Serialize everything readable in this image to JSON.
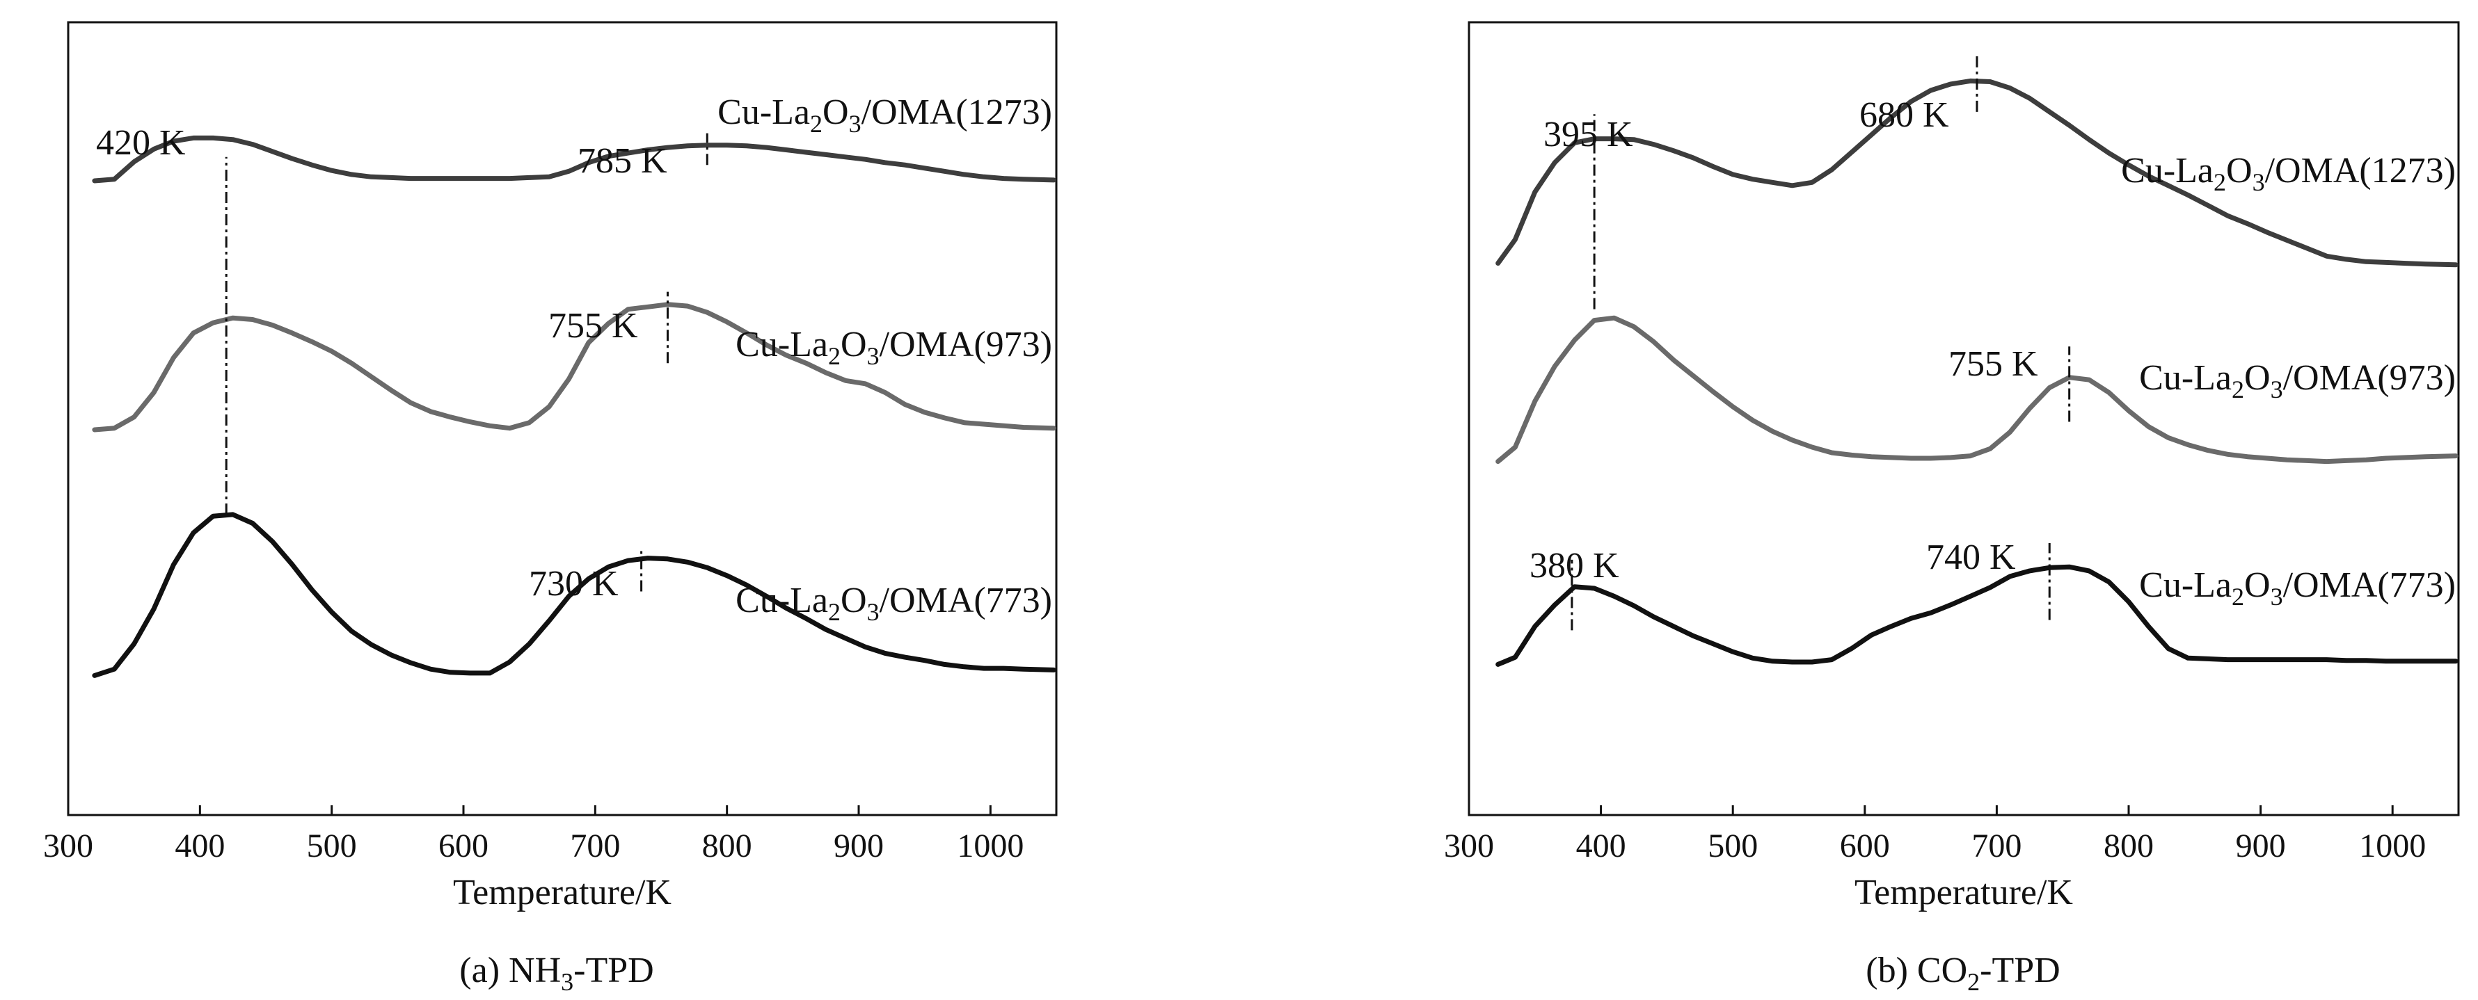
{
  "chart_data": [
    {
      "type": "line",
      "panel": "a",
      "title": "(a) NH3-TPD",
      "title_parts": {
        "prefix": "(a) NH",
        "sub": "3",
        "suffix": "-TPD"
      },
      "xlabel": "Temperature/K",
      "ylabel": "",
      "xlim": [
        300,
        1050
      ],
      "x_ticks": [
        300,
        400,
        500,
        600,
        700,
        800,
        900,
        1000
      ],
      "y_ticks": [],
      "ylim": [
        0,
        100
      ],
      "grid": false,
      "series": [
        {
          "name": "Cu-La2O3/OMA(1273)",
          "label_parts": [
            "Cu-La",
            "2",
            "O",
            "3",
            "/OMA(1273)"
          ],
          "color": "#3d3d3d",
          "x": [
            320,
            335,
            350,
            365,
            380,
            395,
            410,
            425,
            440,
            455,
            470,
            485,
            500,
            515,
            530,
            545,
            560,
            575,
            590,
            605,
            620,
            635,
            650,
            665,
            680,
            695,
            710,
            725,
            740,
            755,
            770,
            785,
            800,
            815,
            830,
            845,
            860,
            875,
            890,
            905,
            920,
            935,
            950,
            965,
            980,
            995,
            1010,
            1025,
            1048
          ],
          "y": [
            80.0,
            80.2,
            82.4,
            84.0,
            85.0,
            85.4,
            85.4,
            85.2,
            84.6,
            83.7,
            82.8,
            82.0,
            81.3,
            80.8,
            80.5,
            80.4,
            80.3,
            80.3,
            80.3,
            80.3,
            80.3,
            80.3,
            80.4,
            80.5,
            81.2,
            82.3,
            83.1,
            83.5,
            83.9,
            84.2,
            84.4,
            84.5,
            84.5,
            84.4,
            84.2,
            83.9,
            83.6,
            83.3,
            83.0,
            82.7,
            82.3,
            82.0,
            81.6,
            81.2,
            80.8,
            80.5,
            80.3,
            80.2,
            80.1
          ]
        },
        {
          "name": "Cu-La2O3/OMA(973)",
          "label_parts": [
            "Cu-La",
            "2",
            "O",
            "3",
            "/OMA(973)"
          ],
          "color": "#6a6a6a",
          "x": [
            320,
            335,
            350,
            365,
            380,
            395,
            410,
            425,
            440,
            455,
            470,
            485,
            500,
            515,
            530,
            545,
            560,
            575,
            590,
            605,
            620,
            635,
            650,
            665,
            680,
            695,
            710,
            725,
            740,
            755,
            770,
            785,
            800,
            815,
            830,
            845,
            860,
            875,
            890,
            905,
            920,
            935,
            950,
            965,
            980,
            995,
            1010,
            1025,
            1048
          ],
          "y": [
            48.6,
            48.8,
            50.2,
            53.3,
            57.7,
            60.8,
            62.1,
            62.7,
            62.5,
            61.8,
            60.8,
            59.7,
            58.5,
            57.0,
            55.3,
            53.6,
            52.0,
            50.9,
            50.2,
            49.6,
            49.1,
            48.8,
            49.5,
            51.5,
            55.0,
            59.6,
            62.0,
            63.8,
            64.1,
            64.4,
            64.2,
            63.4,
            62.2,
            60.8,
            59.3,
            58.0,
            57.0,
            55.8,
            54.8,
            54.4,
            53.3,
            51.8,
            50.8,
            50.1,
            49.5,
            49.3,
            49.1,
            48.9,
            48.8
          ]
        },
        {
          "name": "Cu-La2O3/OMA(773)",
          "label_parts": [
            "Cu-La",
            "2",
            "O",
            "3",
            "/OMA(773)"
          ],
          "color": "#111111",
          "x": [
            320,
            335,
            350,
            365,
            380,
            395,
            410,
            425,
            440,
            455,
            470,
            485,
            500,
            515,
            530,
            545,
            560,
            575,
            590,
            605,
            620,
            635,
            650,
            665,
            680,
            695,
            710,
            725,
            740,
            755,
            770,
            785,
            800,
            815,
            830,
            845,
            860,
            875,
            890,
            905,
            920,
            935,
            950,
            965,
            980,
            995,
            1010,
            1025,
            1048
          ],
          "y": [
            17.6,
            18.4,
            21.6,
            26.0,
            31.6,
            35.6,
            37.7,
            37.9,
            36.8,
            34.5,
            31.6,
            28.4,
            25.6,
            23.2,
            21.5,
            20.2,
            19.2,
            18.4,
            18.0,
            17.9,
            17.9,
            19.3,
            21.6,
            24.5,
            27.6,
            29.8,
            31.3,
            32.1,
            32.4,
            32.3,
            31.9,
            31.2,
            30.2,
            29.0,
            27.6,
            26.1,
            24.8,
            23.4,
            22.3,
            21.2,
            20.4,
            19.9,
            19.5,
            19.0,
            18.7,
            18.5,
            18.5,
            18.4,
            18.3
          ]
        }
      ],
      "peak_markers": [
        {
          "label": "420 K",
          "x": 420,
          "y_from": 37.9,
          "y_to": 83.0
        },
        {
          "label": "785 K",
          "x": 785,
          "y_from": 82.0,
          "y_to": 86.0
        },
        {
          "label": "755 K",
          "x": 755,
          "y_from": 57.0,
          "y_to": 66.0
        },
        {
          "label": "730 K",
          "x": 735,
          "y_from": 28.2,
          "y_to": 33.6
        }
      ]
    },
    {
      "type": "line",
      "panel": "b",
      "title": "(b) CO2-TPD",
      "title_parts": {
        "prefix": "(b) CO",
        "sub": "2",
        "suffix": "-TPD"
      },
      "xlabel": "Temperature/K",
      "ylabel": "",
      "xlim": [
        300,
        1050
      ],
      "x_ticks": [
        300,
        400,
        500,
        600,
        700,
        800,
        900,
        1000
      ],
      "y_ticks": [],
      "ylim": [
        0,
        100
      ],
      "grid": false,
      "series": [
        {
          "name": "Cu-La2O3/OMA(1273)",
          "label_parts": [
            "Cu-La",
            "2",
            "O",
            "3",
            "/OMA(1273)"
          ],
          "color": "#3d3d3d",
          "x": [
            322,
            335,
            350,
            365,
            380,
            395,
            410,
            425,
            440,
            455,
            470,
            485,
            500,
            515,
            530,
            545,
            560,
            575,
            590,
            605,
            620,
            635,
            650,
            665,
            680,
            695,
            710,
            725,
            740,
            755,
            770,
            785,
            800,
            815,
            830,
            845,
            860,
            875,
            890,
            905,
            920,
            935,
            950,
            965,
            980,
            995,
            1010,
            1025,
            1048
          ],
          "y": [
            69.6,
            72.6,
            78.6,
            82.3,
            84.8,
            85.3,
            85.3,
            85.2,
            84.6,
            83.8,
            82.9,
            81.8,
            80.8,
            80.2,
            79.8,
            79.4,
            79.8,
            81.4,
            83.6,
            85.8,
            88.0,
            90.0,
            91.4,
            92.2,
            92.6,
            92.5,
            91.7,
            90.4,
            88.7,
            87.0,
            85.2,
            83.5,
            82.0,
            80.6,
            79.4,
            78.2,
            76.9,
            75.6,
            74.6,
            73.5,
            72.5,
            71.5,
            70.5,
            70.1,
            69.8,
            69.7,
            69.6,
            69.5,
            69.4
          ]
        },
        {
          "name": "Cu-La2O3/OMA(973)",
          "label_parts": [
            "Cu-La",
            "2",
            "O",
            "3",
            "/OMA(973)"
          ],
          "color": "#6a6a6a",
          "x": [
            322,
            335,
            350,
            365,
            380,
            395,
            410,
            425,
            440,
            455,
            470,
            485,
            500,
            515,
            530,
            545,
            560,
            575,
            590,
            605,
            620,
            635,
            650,
            665,
            680,
            695,
            710,
            725,
            740,
            755,
            770,
            785,
            800,
            815,
            830,
            845,
            860,
            875,
            890,
            905,
            920,
            935,
            950,
            965,
            980,
            995,
            1010,
            1025,
            1048
          ],
          "y": [
            44.6,
            46.4,
            52.2,
            56.6,
            59.9,
            62.4,
            62.7,
            61.6,
            59.7,
            57.4,
            55.4,
            53.4,
            51.5,
            49.8,
            48.4,
            47.3,
            46.4,
            45.7,
            45.4,
            45.2,
            45.1,
            45.0,
            45.0,
            45.1,
            45.3,
            46.2,
            48.3,
            51.3,
            53.9,
            55.2,
            54.9,
            53.3,
            51.0,
            49.0,
            47.6,
            46.7,
            46.0,
            45.5,
            45.2,
            45.0,
            44.8,
            44.7,
            44.6,
            44.7,
            44.8,
            45.0,
            45.1,
            45.2,
            45.3
          ]
        },
        {
          "name": "Cu-La2O3/OMA(773)",
          "label_parts": [
            "Cu-La",
            "2",
            "O",
            "3",
            "/OMA(773)"
          ],
          "color": "#111111",
          "x": [
            322,
            335,
            350,
            365,
            380,
            395,
            410,
            425,
            440,
            455,
            470,
            485,
            500,
            515,
            530,
            545,
            560,
            575,
            590,
            605,
            620,
            635,
            650,
            665,
            680,
            695,
            710,
            725,
            740,
            755,
            770,
            785,
            800,
            815,
            830,
            845,
            860,
            875,
            890,
            905,
            920,
            935,
            950,
            965,
            980,
            995,
            1010,
            1025,
            1048
          ],
          "y": [
            19.0,
            19.9,
            23.8,
            26.5,
            28.8,
            28.6,
            27.6,
            26.4,
            25.0,
            23.8,
            22.6,
            21.6,
            20.6,
            19.8,
            19.4,
            19.3,
            19.3,
            19.6,
            21.0,
            22.7,
            23.8,
            24.8,
            25.5,
            26.5,
            27.6,
            28.7,
            30.1,
            30.8,
            31.2,
            31.3,
            30.8,
            29.4,
            26.9,
            23.8,
            21.0,
            19.8,
            19.7,
            19.6,
            19.6,
            19.6,
            19.6,
            19.6,
            19.6,
            19.5,
            19.5,
            19.4,
            19.4,
            19.4,
            19.4
          ]
        }
      ],
      "peak_markers": [
        {
          "label": "395 K",
          "x": 395,
          "y_from": 63.8,
          "y_to": 88.4
        },
        {
          "label": "680 K",
          "x": 685,
          "y_from": 88.7,
          "y_to": 96.2
        },
        {
          "label": "755 K",
          "x": 755,
          "y_from": 49.6,
          "y_to": 59.1
        },
        {
          "label": "380 K",
          "x": 378,
          "y_from": 23.3,
          "y_to": 32.2
        },
        {
          "label": "740 K",
          "x": 740,
          "y_from": 24.6,
          "y_to": 34.3
        }
      ]
    }
  ]
}
